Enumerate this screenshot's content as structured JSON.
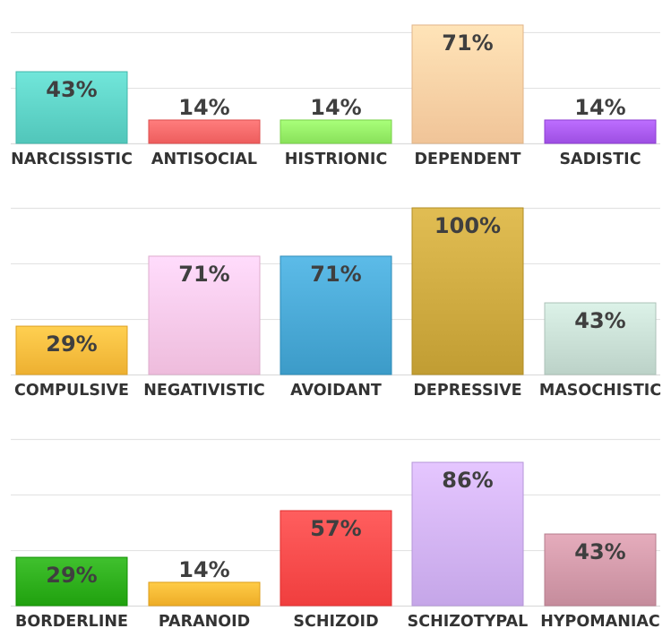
{
  "chart_data": [
    {
      "type": "bar",
      "title": "",
      "xlabel": "",
      "ylabel": "",
      "ylim": [
        0,
        100
      ],
      "categories": [
        "NARCISSISTIC",
        "ANTISOCIAL",
        "HISTRIONIC",
        "DEPENDENT",
        "SADISTIC"
      ],
      "values": [
        43,
        14,
        14,
        71,
        14
      ],
      "value_labels": [
        "43%",
        "14%",
        "14%",
        "71%",
        "14%"
      ],
      "colors": [
        "#5fd4c8",
        "#fb6b6b",
        "#97ef68",
        "#fed2a6",
        "#ab5cf0"
      ],
      "grid": true,
      "legend": "none"
    },
    {
      "type": "bar",
      "title": "",
      "xlabel": "",
      "ylabel": "",
      "ylim": [
        0,
        100
      ],
      "categories": [
        "COMPULSIVE",
        "NEGATIVISTIC",
        "AVOIDANT",
        "DEPRESSIVE",
        "MASOCHISTIC"
      ],
      "values": [
        29,
        71,
        71,
        100,
        43
      ],
      "value_labels": [
        "29%",
        "71%",
        "71%",
        "100%",
        "43%"
      ],
      "colors": [
        "#fbbe3f",
        "#fccaea",
        "#4aa9d6",
        "#cfab41",
        "#cae0d6"
      ],
      "grid": true,
      "legend": "none"
    },
    {
      "type": "bar",
      "title": "",
      "xlabel": "",
      "ylabel": "",
      "ylim": [
        0,
        100
      ],
      "categories": [
        "BORDERLINE",
        "PARANOID",
        "SCHIZOID",
        "SCHIZOTYPAL",
        "HYPOMANIAC"
      ],
      "values": [
        29,
        14,
        57,
        86,
        43
      ],
      "value_labels": [
        "29%",
        "14%",
        "57%",
        "86%",
        "43%"
      ],
      "colors": [
        "#2eaf1c",
        "#fbba35",
        "#fe4c4c",
        "#d3b4f6",
        "#d39aaa"
      ],
      "grid": true,
      "legend": "none"
    }
  ]
}
